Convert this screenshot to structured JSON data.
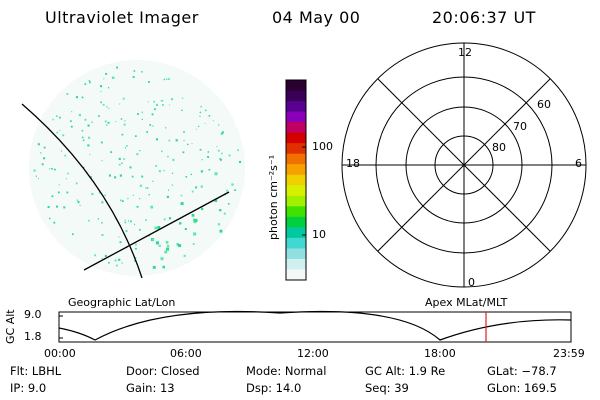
{
  "header": {
    "instrument": "Ultraviolet Imager",
    "date": "04 May 00",
    "time": "20:06:37 UT"
  },
  "colorbar": {
    "unit_label": "photon cm⁻²s⁻¹",
    "ticks": [
      "100",
      "10"
    ],
    "colors": [
      "#2a0030",
      "#3a0058",
      "#5a0090",
      "#8a00b8",
      "#c00060",
      "#d40000",
      "#e03000",
      "#f07000",
      "#f8a000",
      "#f0d000",
      "#d8f000",
      "#a0f000",
      "#40e000",
      "#00d040",
      "#00c8a0",
      "#40d8d0",
      "#90e0e0",
      "#d0f0f0",
      "#f4f8f8"
    ]
  },
  "polar": {
    "mlt_labels": {
      "top": "12",
      "left": "18",
      "right": "6",
      "bottom": "0"
    },
    "lat_labels": [
      "60",
      "70",
      "80"
    ]
  },
  "timeline": {
    "left_title": "Geographic Lat/Lon",
    "right_title": "Apex MLat/MLT",
    "y_axis_label": "GC Alt",
    "y_ticks": [
      "9.0",
      "1.8"
    ],
    "x_ticks": [
      "00:00",
      "06:00",
      "12:00",
      "18:00",
      "23:59"
    ]
  },
  "footer": {
    "flt": "Flt: LBHL",
    "ip": "IP:  9.0",
    "door": "Door: Closed",
    "gain": "Gain: 13",
    "mode": "Mode: Normal",
    "dsp": "Dsp:    14.0",
    "gc_alt": "GC Alt: 1.9 Re",
    "seq": "Seq: 39",
    "glat": "GLat: −78.7",
    "glon": "GLon: 169.5"
  },
  "colors": {
    "accent_marker": "#e02020",
    "speckle": "#30d890",
    "speckle_alt": "#60e8b0"
  }
}
